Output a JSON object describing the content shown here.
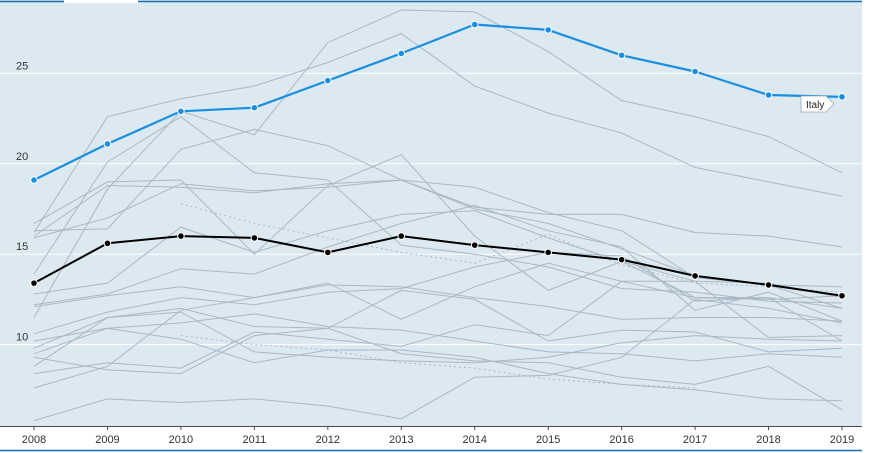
{
  "chart_data": {
    "type": "line",
    "title": "",
    "xlabel": "",
    "ylabel": "",
    "x": [
      2008,
      2009,
      2010,
      2011,
      2012,
      2013,
      2014,
      2015,
      2016,
      2017,
      2018,
      2019
    ],
    "x_tick_labels": [
      "2008",
      "2009",
      "2010",
      "2011",
      "2012",
      "2013",
      "2014",
      "2015",
      "2016",
      "2017",
      "2018",
      "2019"
    ],
    "y_ticks": [
      10,
      15,
      20,
      25
    ],
    "y_tick_labels": [
      "10",
      "15",
      "20",
      "25"
    ],
    "ylim": [
      5.5,
      29
    ],
    "grid": "horizontal",
    "highlight": {
      "name": "Italy",
      "color": "#1a8fe0",
      "values": [
        19.1,
        21.1,
        22.9,
        23.1,
        24.6,
        26.1,
        27.7,
        27.4,
        26.0,
        25.1,
        23.8,
        23.7
      ]
    },
    "average": {
      "color": "#000000",
      "values": [
        13.4,
        15.6,
        16.0,
        15.9,
        15.1,
        16.0,
        15.5,
        15.1,
        14.7,
        13.8,
        13.3,
        12.7
      ]
    },
    "background_series": [
      {
        "values": [
          16.2,
          22.6,
          23.6,
          24.3,
          25.6,
          27.2,
          24.3,
          22.8,
          21.7,
          19.8,
          19.0,
          18.2
        ],
        "dashed": false
      },
      {
        "values": [
          11.5,
          18.6,
          22.9,
          21.6,
          26.7,
          28.5,
          28.4,
          26.2,
          23.5,
          22.6,
          21.5,
          19.5
        ],
        "dashed": false
      },
      {
        "values": [
          13.9,
          20.1,
          22.6,
          19.5,
          19.1,
          15.5,
          15.0,
          14.3,
          13.1,
          12.9,
          12.4,
          12.3
        ],
        "dashed": false
      },
      {
        "values": [
          16.7,
          19.0,
          19.1,
          15.0,
          18.8,
          20.5,
          16.0,
          13.0,
          14.6,
          12.6,
          12.6,
          10.2
        ],
        "dashed": false
      },
      {
        "values": [
          16.0,
          18.8,
          18.7,
          18.4,
          18.9,
          19.1,
          18.7,
          17.3,
          16.3,
          13.7,
          13.3,
          12.0
        ],
        "dashed": false
      },
      {
        "values": [
          15.9,
          17.0,
          18.9,
          18.5,
          18.7,
          19.1,
          17.6,
          17.2,
          17.2,
          16.2,
          16.0,
          15.4
        ],
        "dashed": false
      },
      {
        "values": [
          16.3,
          16.4,
          20.8,
          21.9,
          21.0,
          19.1,
          17.5,
          16.7,
          15.3,
          13.8,
          13.3,
          13.2
        ],
        "dashed": false
      },
      {
        "values": [
          12.2,
          12.8,
          14.2,
          13.9,
          15.4,
          16.7,
          17.7,
          16.3,
          15.4,
          11.9,
          12.9,
          11.3
        ],
        "dashed": false
      },
      {
        "values": [
          12.8,
          13.4,
          16.5,
          15.1,
          16.3,
          17.2,
          17.4,
          15.9,
          14.6,
          13.5,
          13.4,
          12.6
        ],
        "dashed": false
      },
      {
        "values": [
          12.1,
          12.7,
          13.2,
          12.6,
          13.3,
          13.2,
          12.6,
          12.1,
          11.4,
          11.5,
          11.5,
          11.3
        ],
        "dashed": false
      },
      {
        "values": [
          10.6,
          11.8,
          12.6,
          12.2,
          12.9,
          13.1,
          14.3,
          15.1,
          14.9,
          12.4,
          12.6,
          12.0
        ],
        "dashed": false
      },
      {
        "values": [
          10.2,
          10.9,
          10.3,
          9.0,
          9.7,
          9.7,
          9.3,
          8.4,
          7.8,
          7.5,
          7.0,
          6.9
        ],
        "dashed": false
      },
      {
        "values": [
          8.8,
          11.5,
          12.0,
          11.0,
          10.9,
          13.0,
          12.5,
          10.2,
          10.8,
          10.7,
          9.6,
          9.8
        ],
        "dashed": false
      },
      {
        "values": [
          9.5,
          10.9,
          11.2,
          11.7,
          11.0,
          10.8,
          10.2,
          9.6,
          9.5,
          9.1,
          9.5,
          9.3
        ],
        "dashed": false
      },
      {
        "values": [
          9.8,
          11.5,
          11.8,
          9.6,
          9.3,
          9.1,
          9.0,
          9.3,
          10.1,
          10.5,
          10.3,
          10.2
        ],
        "dashed": false
      },
      {
        "values": [
          9.3,
          8.6,
          8.4,
          10.5,
          10.9,
          9.5,
          9.1,
          9.0,
          8.2,
          7.8,
          8.8,
          6.4
        ],
        "dashed": false
      },
      {
        "values": [
          8.4,
          9.0,
          8.7,
          10.7,
          10.3,
          9.9,
          11.1,
          10.5,
          13.5,
          12.6,
          12.5,
          12.7
        ],
        "dashed": false
      },
      {
        "values": [
          7.6,
          8.8,
          11.9,
          12.6,
          13.4,
          11.4,
          13.2,
          14.5,
          13.5,
          13.5,
          10.4,
          10.5
        ],
        "dashed": false
      },
      {
        "values": [
          5.8,
          7.0,
          6.8,
          7.0,
          6.6,
          5.9,
          8.2,
          8.3,
          9.3,
          12.5,
          12.0,
          11.2
        ],
        "dashed": false
      },
      {
        "values": [
          null,
          null,
          17.8,
          16.7,
          15.9,
          15.1,
          14.5,
          16.1,
          14.4,
          13.4,
          13.2,
          12.9
        ],
        "dashed": true
      },
      {
        "values": [
          null,
          null,
          10.5,
          10.0,
          9.7,
          9.0,
          8.7,
          8.1,
          7.8,
          7.6,
          null,
          null
        ],
        "dashed": true
      }
    ]
  }
}
